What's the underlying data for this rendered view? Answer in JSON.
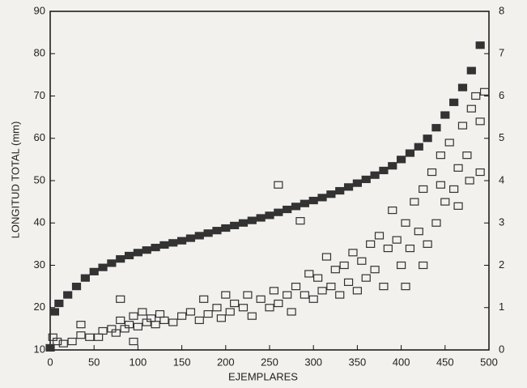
{
  "chart_data": {
    "type": "scatter",
    "x_label": "EJEMPLARES",
    "y_label": "LONGITUD TOTAL (mm)",
    "xlim": [
      0,
      500
    ],
    "xticks": [
      0,
      50,
      100,
      150,
      200,
      250,
      300,
      350,
      400,
      450,
      500
    ],
    "ylim": [
      10,
      90
    ],
    "yticks": [
      10,
      20,
      30,
      40,
      50,
      60,
      70,
      80,
      90
    ],
    "y2lim": [
      0,
      8
    ],
    "y2ticks": [
      0,
      1,
      2,
      3,
      4,
      5,
      6,
      7,
      8
    ],
    "series": [
      {
        "color": "#333333",
        "filled": true,
        "x": [
          0,
          5,
          10,
          20,
          30,
          40,
          50,
          60,
          70,
          80,
          90,
          100,
          110,
          120,
          130,
          140,
          150,
          160,
          170,
          180,
          190,
          200,
          210,
          220,
          230,
          240,
          250,
          260,
          270,
          280,
          290,
          300,
          310,
          320,
          330,
          340,
          350,
          360,
          370,
          380,
          390,
          400,
          410,
          420,
          430,
          440,
          450,
          460,
          470,
          480,
          490
        ],
        "values": [
          10.5,
          19,
          21,
          23,
          25,
          27,
          28.5,
          29.5,
          30.5,
          31.5,
          32.3,
          33,
          33.6,
          34.2,
          34.8,
          35.3,
          35.8,
          36.4,
          37,
          37.6,
          38.2,
          38.8,
          39.4,
          40,
          40.6,
          41.2,
          41.8,
          42.5,
          43.2,
          43.9,
          44.6,
          45.3,
          46,
          46.8,
          47.6,
          48.5,
          49.4,
          50.3,
          51.3,
          52.4,
          53.5,
          55,
          56.5,
          58,
          60,
          62.5,
          65.5,
          68.5,
          72,
          76,
          82
        ]
      },
      {
        "color": "#333333",
        "filled": false,
        "axis": "y2",
        "x": [
          3,
          8,
          15,
          25,
          35,
          45,
          55,
          60,
          70,
          75,
          80,
          85,
          90,
          95,
          100,
          105,
          110,
          115,
          120,
          125,
          130,
          140,
          150,
          160,
          170,
          175,
          180,
          190,
          195,
          200,
          205,
          210,
          220,
          225,
          230,
          240,
          250,
          255,
          260,
          270,
          275,
          280,
          285,
          290,
          295,
          300,
          305,
          310,
          315,
          320,
          325,
          330,
          335,
          340,
          345,
          350,
          355,
          360,
          365,
          370,
          375,
          380,
          385,
          390,
          395,
          400,
          405,
          410,
          415,
          420,
          425,
          430,
          435,
          440,
          445,
          450,
          455,
          460,
          465,
          470,
          475,
          480,
          485,
          490,
          495,
          478,
          490,
          465,
          445,
          405,
          425,
          260,
          95,
          35,
          80
        ],
        "values": [
          0.3,
          0.2,
          0.15,
          0.2,
          0.35,
          0.3,
          0.3,
          0.45,
          0.5,
          0.4,
          0.7,
          0.5,
          0.6,
          0.8,
          0.55,
          0.9,
          0.65,
          0.75,
          0.6,
          0.85,
          0.7,
          0.65,
          0.8,
          0.9,
          0.7,
          1.2,
          0.85,
          1.0,
          0.75,
          1.3,
          0.9,
          1.1,
          1.0,
          1.3,
          0.8,
          1.2,
          1.0,
          1.4,
          1.1,
          1.3,
          0.9,
          1.5,
          3.05,
          1.3,
          1.8,
          1.2,
          1.7,
          1.4,
          2.2,
          1.5,
          1.9,
          1.3,
          2.0,
          1.6,
          2.3,
          1.4,
          2.1,
          1.7,
          2.5,
          1.9,
          2.7,
          1.5,
          2.4,
          3.3,
          2.6,
          2.0,
          3.0,
          2.4,
          3.5,
          2.8,
          3.8,
          2.5,
          4.2,
          3.0,
          4.6,
          3.5,
          4.9,
          3.8,
          4.3,
          5.3,
          4.6,
          5.7,
          6.0,
          5.4,
          6.1,
          4.0,
          4.2,
          3.4,
          3.9,
          1.5,
          2.0,
          3.9,
          0.2,
          0.6,
          1.2
        ]
      }
    ]
  }
}
